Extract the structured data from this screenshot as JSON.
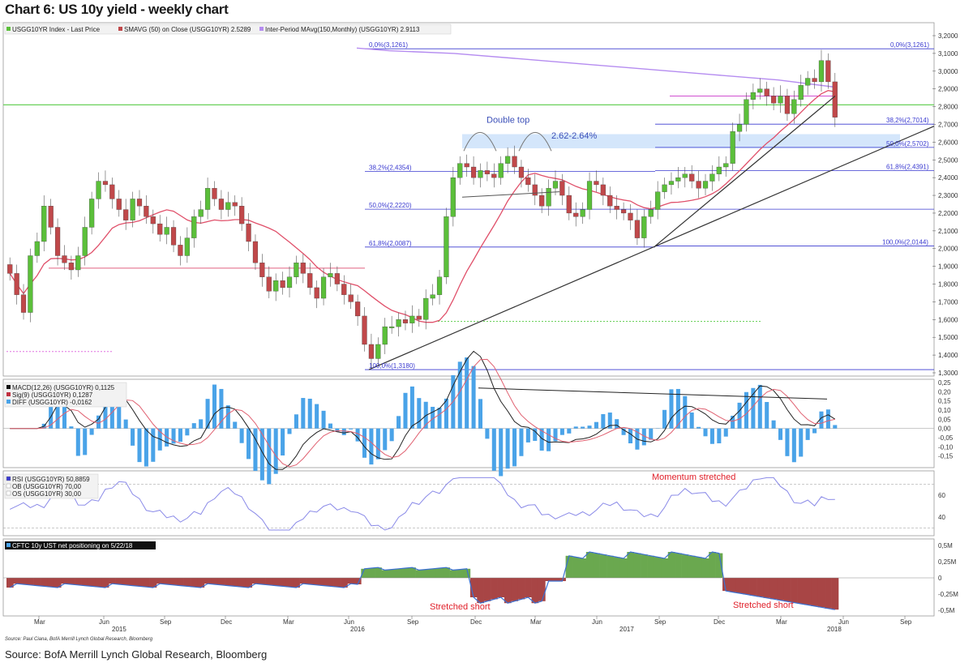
{
  "title": "Chart 6: US 10y yield - weekly chart",
  "source": "Source: BofA Merrill Lynch Global Research, Bloomberg",
  "footnote": "Source: Paul Ciana, BofA Merrill Lynch Global Research, Bloomberg",
  "colors": {
    "up": "#5bbf3a",
    "down": "#c0484a",
    "sma": "#e0506a",
    "ma_long": "#b58cf0",
    "fib": "#3a3ad0",
    "trend": "#333333",
    "green_ref": "#6ad05a",
    "macd_hist": "#4aa3e8",
    "rsi": "#8a8ae8",
    "pos_green": "#6aa84f",
    "pos_red": "#a84545"
  },
  "chart_data": [
    {
      "type": "candlestick",
      "panel": "price",
      "legend": [
        "USGG10YR Index - Last Price",
        "SMAVG (50) on Close (USGG10YR) 2.5289",
        "Inter-Period MAvg(150,Monthly) (USGG10YR) 2.9113"
      ],
      "ylim": [
        1.3,
        3.2
      ],
      "y_ticks": [
        "3,2000",
        "3,1000",
        "3,0000",
        "2,9000",
        "2,8000",
        "2,7000",
        "2,6000",
        "2,5000",
        "2,4000",
        "2,3000",
        "2,2000",
        "2,1000",
        "2,0000",
        "1,9000",
        "1,8000",
        "1,7000",
        "1,6000",
        "1,5000",
        "1,4000",
        "1,3000"
      ],
      "close_series": [
        1.86,
        1.74,
        1.64,
        1.96,
        2.04,
        2.24,
        2.12,
        1.96,
        1.92,
        1.88,
        1.96,
        2.12,
        2.28,
        2.38,
        2.36,
        2.28,
        2.22,
        2.16,
        2.28,
        2.24,
        2.18,
        2.14,
        2.08,
        2.12,
        2.02,
        1.96,
        2.06,
        2.18,
        2.22,
        2.34,
        2.28,
        2.22,
        2.26,
        2.24,
        2.14,
        2.04,
        1.92,
        1.84,
        1.76,
        1.82,
        1.78,
        1.84,
        1.92,
        1.86,
        1.78,
        1.72,
        1.84,
        1.86,
        1.8,
        1.74,
        1.7,
        1.62,
        1.46,
        1.38,
        1.46,
        1.56,
        1.56,
        1.6,
        1.58,
        1.62,
        1.6,
        1.72,
        1.74,
        1.84,
        2.18,
        2.4,
        2.48,
        2.46,
        2.4,
        2.44,
        2.42,
        2.4,
        2.48,
        2.52,
        2.46,
        2.4,
        2.36,
        2.3,
        2.24,
        2.34,
        2.38,
        2.3,
        2.2,
        2.18,
        2.22,
        2.38,
        2.36,
        2.3,
        2.24,
        2.22,
        2.2,
        2.16,
        2.06,
        2.18,
        2.22,
        2.32,
        2.36,
        2.38,
        2.4,
        2.42,
        2.38,
        2.34,
        2.38,
        2.42,
        2.46,
        2.48,
        2.66,
        2.7,
        2.84,
        2.88,
        2.9,
        2.86,
        2.82,
        2.86,
        2.76,
        2.84,
        2.92,
        2.96,
        2.94,
        3.06,
        2.94,
        2.74
      ],
      "sma50_label": "SMAVG (50)",
      "fib_levels": [
        {
          "label": "0,0%(3,1261)",
          "value": 3.1261
        },
        {
          "label": "38,2%(2,7014)",
          "value": 2.7014
        },
        {
          "label": "50,0%(2,5702)",
          "value": 2.5702
        },
        {
          "label": "61,8%(2,4391)",
          "value": 2.4391
        },
        {
          "label": "100,0%(2,0144)",
          "value": 2.0144
        },
        {
          "label": "38,2%(2,4354)",
          "value": 2.4354
        },
        {
          "label": "50,0%(2,2220)",
          "value": 2.222
        },
        {
          "label": "61,8%(2,0087)",
          "value": 2.0087
        },
        {
          "label": "100,0%(1,3180)",
          "value": 1.318
        }
      ],
      "annotations": [
        "Double top",
        "2.62-2.64%"
      ]
    },
    {
      "type": "line",
      "panel": "macd",
      "legend": [
        "MACD(12,26) (USGG10YR) 0,1125",
        "Sig(9) (USGG10YR) 0,1287",
        "DIFF (USGG10YR) -0,0162"
      ],
      "ylim": [
        -0.2,
        0.25
      ],
      "y_ticks": [
        "0,25",
        "0,20",
        "0,15",
        "0,10",
        "0,05",
        "0,00",
        "-0,05",
        "-0,10",
        "-0,15"
      ]
    },
    {
      "type": "line",
      "panel": "rsi",
      "legend": [
        "RSI (USGG10YR) 50,8859",
        "OB (USGG10YR) 70,00",
        "OS (USGG10YR) 30,00"
      ],
      "ylim": [
        25,
        80
      ],
      "y_ticks": [
        "60",
        "40"
      ],
      "annotations": [
        "Momentum stretched"
      ]
    },
    {
      "type": "area",
      "panel": "positioning",
      "legend": [
        "CFTC 10y UST net positioning on 5/22/18"
      ],
      "ylim": [
        -0.55,
        0.55
      ],
      "y_ticks": [
        "0,5M",
        "0,25M",
        "0",
        "-0,25M",
        "-0,5M"
      ],
      "annotations": [
        "Stretched short",
        "Stretched short"
      ],
      "x_ticks": [
        "Mar",
        "Jun",
        "Sep",
        "Dec",
        "Mar",
        "Jun",
        "Sep",
        "Dec",
        "Mar",
        "Jun",
        "Sep",
        "Dec",
        "Mar",
        "Jun",
        "Sep"
      ],
      "x_years": [
        "2015",
        "2016",
        "2017",
        "2018"
      ]
    }
  ]
}
